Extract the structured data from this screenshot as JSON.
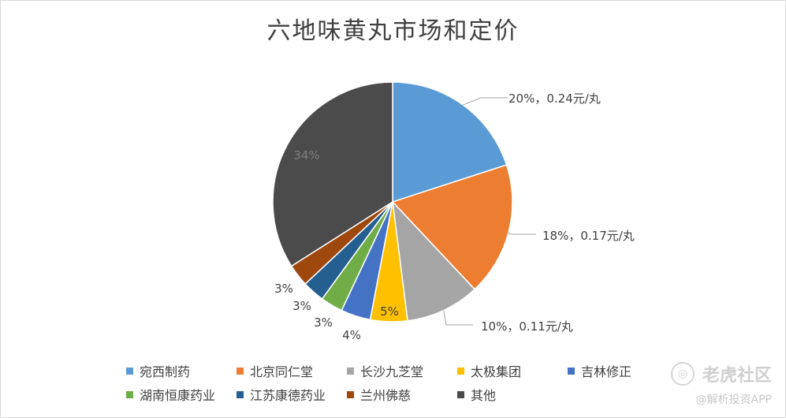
{
  "chart_data": {
    "type": "pie",
    "title": "六地味黄丸市场和定价",
    "slices": [
      {
        "name": "宛西制药",
        "value": 20,
        "label": "20%，0.24元/丸",
        "color": "#5b9bd5"
      },
      {
        "name": "北京同仁堂",
        "value": 18,
        "label": "18%，0.17元/丸",
        "color": "#ed7d31"
      },
      {
        "name": "长沙九芝堂",
        "value": 10,
        "label": "10%，0.11元/丸",
        "color": "#a5a5a5"
      },
      {
        "name": "太极集团",
        "value": 5,
        "label": "5%",
        "color": "#ffc000"
      },
      {
        "name": "吉林修正",
        "value": 4,
        "label": "4%",
        "color": "#4472c4"
      },
      {
        "name": "湖南恒康药业",
        "value": 3,
        "label": "3%",
        "color": "#70ad47"
      },
      {
        "name": "江苏康德药业",
        "value": 3,
        "label": "3%",
        "color": "#255e91"
      },
      {
        "name": "兰州佛慈",
        "value": 3,
        "label": "3%",
        "color": "#9e480e"
      },
      {
        "name": "其他",
        "value": 34,
        "label": "34%",
        "color": "#4b4b4b"
      }
    ],
    "legend_position": "bottom"
  },
  "watermark": {
    "main": "老虎社区",
    "sub": "@解析投资APP"
  }
}
